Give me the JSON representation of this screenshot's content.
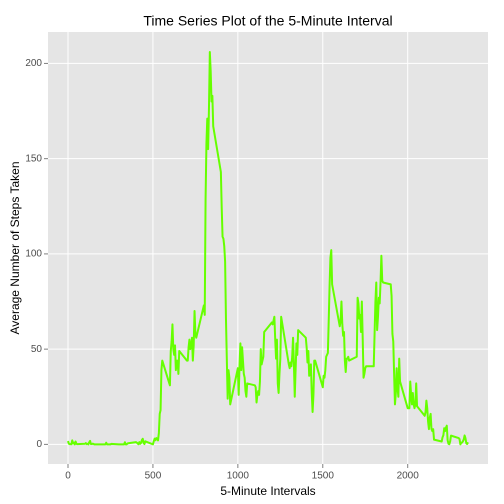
{
  "chart_data": {
    "type": "line",
    "title": "Time Series Plot of the 5-Minute Interval",
    "xlabel": "5-Minute Intervals",
    "ylabel": "Average Number of Steps Taken",
    "color": "#66ff00",
    "grid": true,
    "xlim": [
      -117.75,
      2472.75
    ],
    "ylim": [
      -10.3,
      216.5
    ],
    "xticks": [
      0,
      500,
      1000,
      1500,
      2000
    ],
    "yticks": [
      0,
      50,
      100,
      150,
      200
    ],
    "x": [
      0,
      5,
      10,
      15,
      20,
      25,
      30,
      35,
      40,
      45,
      50,
      55,
      100,
      105,
      110,
      115,
      120,
      125,
      130,
      135,
      140,
      145,
      150,
      155,
      200,
      205,
      210,
      215,
      220,
      225,
      230,
      235,
      240,
      245,
      250,
      255,
      300,
      305,
      310,
      315,
      320,
      325,
      330,
      335,
      340,
      345,
      350,
      355,
      400,
      405,
      410,
      415,
      420,
      425,
      430,
      435,
      440,
      445,
      450,
      455,
      500,
      505,
      510,
      515,
      520,
      525,
      530,
      535,
      540,
      545,
      550,
      555,
      600,
      605,
      610,
      615,
      620,
      625,
      630,
      635,
      640,
      645,
      650,
      655,
      700,
      705,
      710,
      715,
      720,
      725,
      730,
      735,
      740,
      745,
      750,
      755,
      800,
      805,
      810,
      815,
      820,
      825,
      830,
      835,
      840,
      845,
      850,
      855,
      900,
      905,
      910,
      915,
      920,
      925,
      930,
      935,
      940,
      945,
      950,
      955,
      1000,
      1005,
      1010,
      1015,
      1020,
      1025,
      1030,
      1035,
      1040,
      1045,
      1050,
      1055,
      1100,
      1105,
      1110,
      1115,
      1120,
      1125,
      1130,
      1135,
      1140,
      1145,
      1150,
      1155,
      1200,
      1205,
      1210,
      1215,
      1220,
      1225,
      1230,
      1235,
      1240,
      1245,
      1250,
      1255,
      1300,
      1305,
      1310,
      1315,
      1320,
      1325,
      1330,
      1335,
      1340,
      1345,
      1350,
      1355,
      1400,
      1405,
      1410,
      1415,
      1420,
      1425,
      1430,
      1435,
      1440,
      1445,
      1450,
      1455,
      1500,
      1505,
      1510,
      1515,
      1520,
      1525,
      1530,
      1535,
      1540,
      1545,
      1550,
      1555,
      1600,
      1605,
      1610,
      1615,
      1620,
      1625,
      1630,
      1635,
      1640,
      1645,
      1650,
      1655,
      1700,
      1705,
      1710,
      1715,
      1720,
      1725,
      1730,
      1735,
      1740,
      1745,
      1750,
      1755,
      1800,
      1805,
      1810,
      1815,
      1820,
      1825,
      1830,
      1835,
      1840,
      1845,
      1850,
      1855,
      1900,
      1905,
      1910,
      1915,
      1920,
      1925,
      1930,
      1935,
      1940,
      1945,
      1950,
      1955,
      2000,
      2005,
      2010,
      2015,
      2020,
      2025,
      2030,
      2035,
      2040,
      2045,
      2050,
      2055,
      2100,
      2105,
      2110,
      2115,
      2120,
      2125,
      2130,
      2135,
      2140,
      2145,
      2150,
      2155,
      2200,
      2205,
      2210,
      2215,
      2220,
      2225,
      2230,
      2235,
      2240,
      2245,
      2250,
      2255,
      2300,
      2305,
      2310,
      2315,
      2320,
      2325,
      2330,
      2335,
      2340,
      2345,
      2350,
      2355
    ],
    "values": [
      1.72,
      0.34,
      0.13,
      0.15,
      0.08,
      2.09,
      0.53,
      0.87,
      0,
      1.47,
      0.3,
      0.13,
      0.32,
      0.68,
      0.15,
      0.34,
      0,
      1.11,
      1.83,
      0.17,
      0.17,
      0.38,
      0.26,
      0,
      0,
      0,
      0,
      0,
      0.02,
      0.87,
      0,
      0,
      0,
      0,
      0,
      0.26,
      0,
      0,
      0,
      0,
      0,
      0,
      0,
      1.13,
      0,
      0,
      0.42,
      0.62,
      1.19,
      0.94,
      0.47,
      0.11,
      1.2,
      0.32,
      0.75,
      2.26,
      2.96,
      0.79,
      0.18,
      1.62,
      0,
      1.6,
      3,
      2.2,
      3.3,
      3,
      2.1,
      6,
      16,
      18,
      39,
      44,
      31,
      49,
      54,
      63,
      50,
      47,
      52,
      39,
      44,
      44,
      37,
      49,
      44,
      44,
      51,
      55,
      50,
      51,
      56,
      44,
      52,
      70,
      58,
      56,
      73,
      68,
      129,
      158,
      171,
      155,
      177,
      206,
      196,
      180,
      183,
      167,
      143,
      124,
      109,
      108,
      104,
      96,
      66,
      45,
      24,
      39,
      35,
      21,
      40,
      26,
      42,
      53,
      39,
      51,
      44,
      37,
      35,
      28,
      25,
      32,
      31,
      30,
      22,
      26,
      28,
      26,
      33,
      50,
      42,
      44,
      46,
      59,
      64,
      63,
      65,
      67,
      55,
      45,
      55,
      32,
      27,
      37,
      45,
      67,
      42,
      40,
      43,
      41,
      46,
      56,
      42,
      25,
      39,
      53,
      47,
      60,
      56,
      51,
      43,
      49,
      36,
      38,
      42,
      27,
      17,
      26,
      44,
      44,
      30,
      36,
      35,
      39,
      46,
      47,
      48,
      65,
      83,
      98,
      102,
      84,
      62,
      65,
      75,
      63,
      57,
      59,
      44,
      38,
      45,
      45,
      46,
      44,
      46,
      77,
      74,
      66,
      68,
      59,
      75,
      56,
      35,
      37,
      40,
      41,
      41,
      58,
      75,
      85,
      60,
      67,
      77,
      74,
      85,
      99,
      86,
      85,
      84,
      78,
      58,
      54,
      37,
      21,
      27,
      40,
      30,
      25,
      45,
      33,
      19,
      19,
      19,
      33,
      26,
      21,
      27,
      21,
      19,
      21,
      32,
      20,
      15,
      17,
      23,
      19,
      12,
      8,
      14,
      16,
      8,
      7,
      8,
      2.5,
      1.5,
      3.7,
      4.8,
      8.5,
      7,
      8.7,
      9.8,
      2.2,
      0.3,
      0.1,
      1.6,
      4.6,
      3.3,
      2.8,
      0,
      0.8,
      1,
      1.6,
      2.6,
      4.7,
      3.3,
      0.6,
      0.2,
      1.1
    ]
  }
}
